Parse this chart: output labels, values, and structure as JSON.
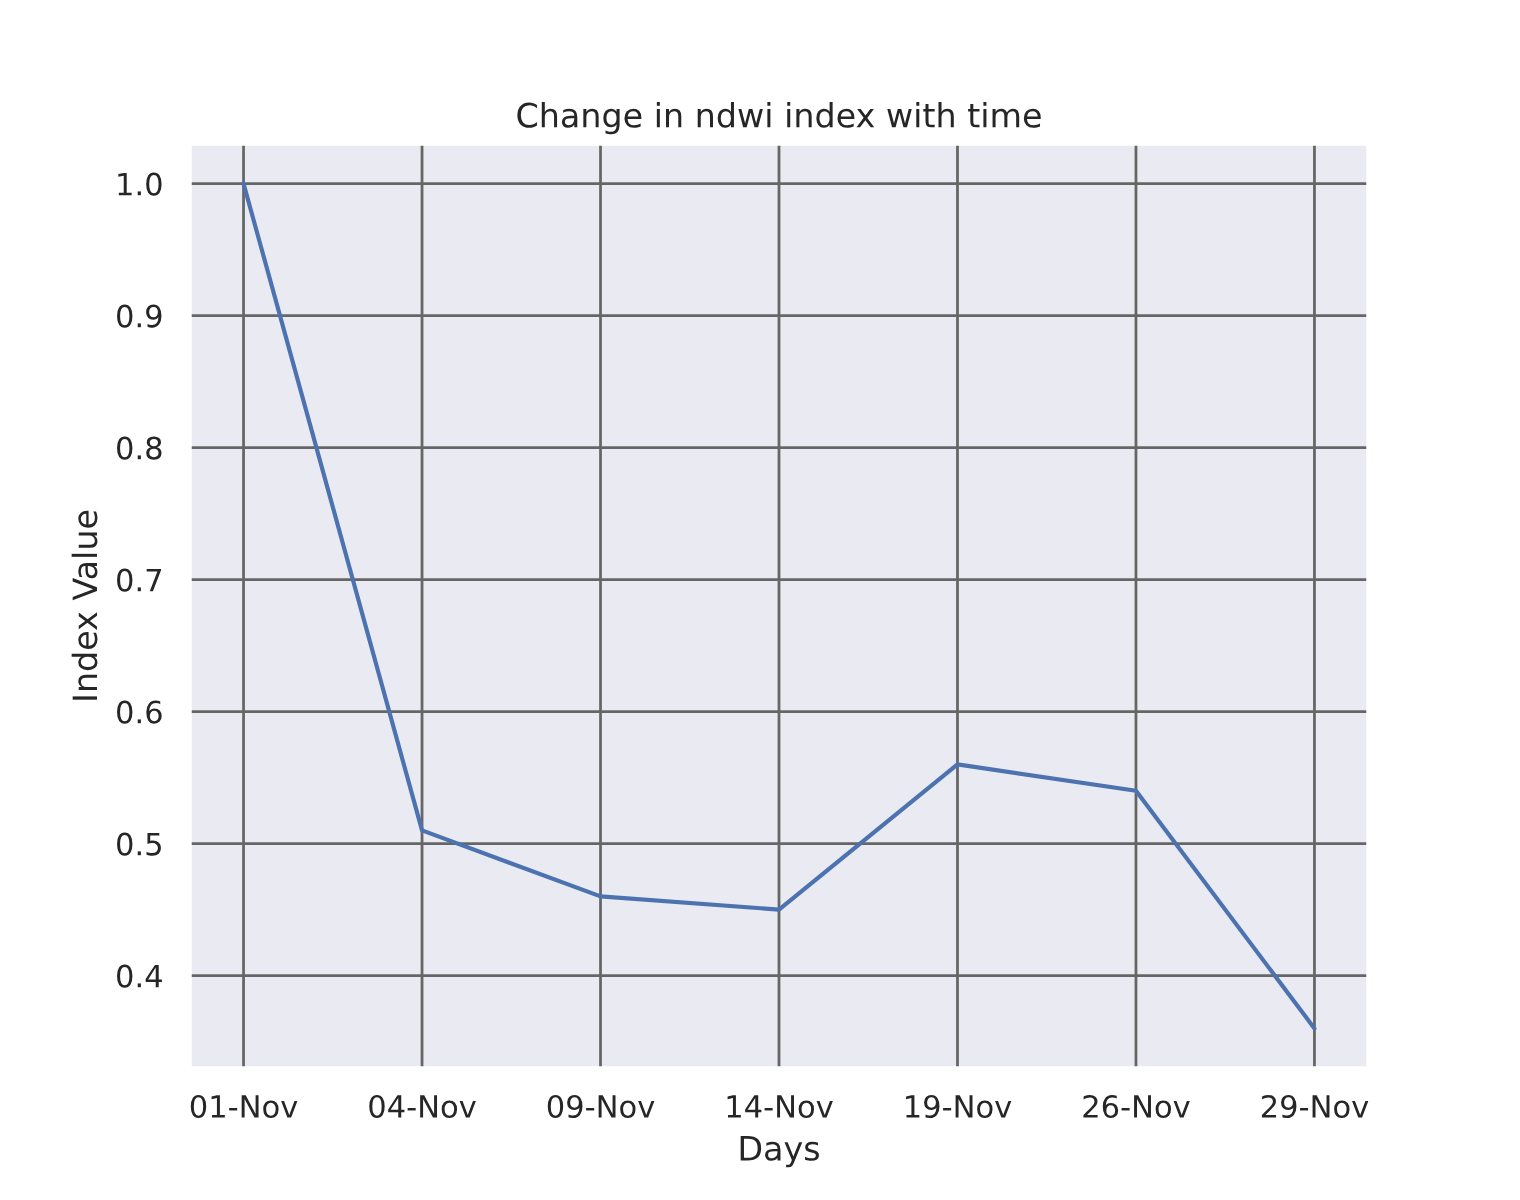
{
  "chart_data": {
    "type": "line",
    "title": "Change in ndwi index with time",
    "xlabel": "Days",
    "ylabel": "Index Value",
    "categories": [
      "01-Nov",
      "04-Nov",
      "09-Nov",
      "14-Nov",
      "19-Nov",
      "26-Nov",
      "29-Nov"
    ],
    "series": [
      {
        "color": "#4c72b0",
        "values": [
          1.0,
          0.51,
          0.46,
          0.45,
          0.56,
          0.54,
          0.36
        ]
      }
    ],
    "ylim": [
      0.33,
      1.03
    ],
    "yticks": [
      0.4,
      0.5,
      0.6,
      0.7,
      0.8,
      0.9,
      {
        "value": 1,
        "label": "1.0"
      }
    ],
    "grid": true,
    "marker": "none",
    "line_style": "solid"
  }
}
